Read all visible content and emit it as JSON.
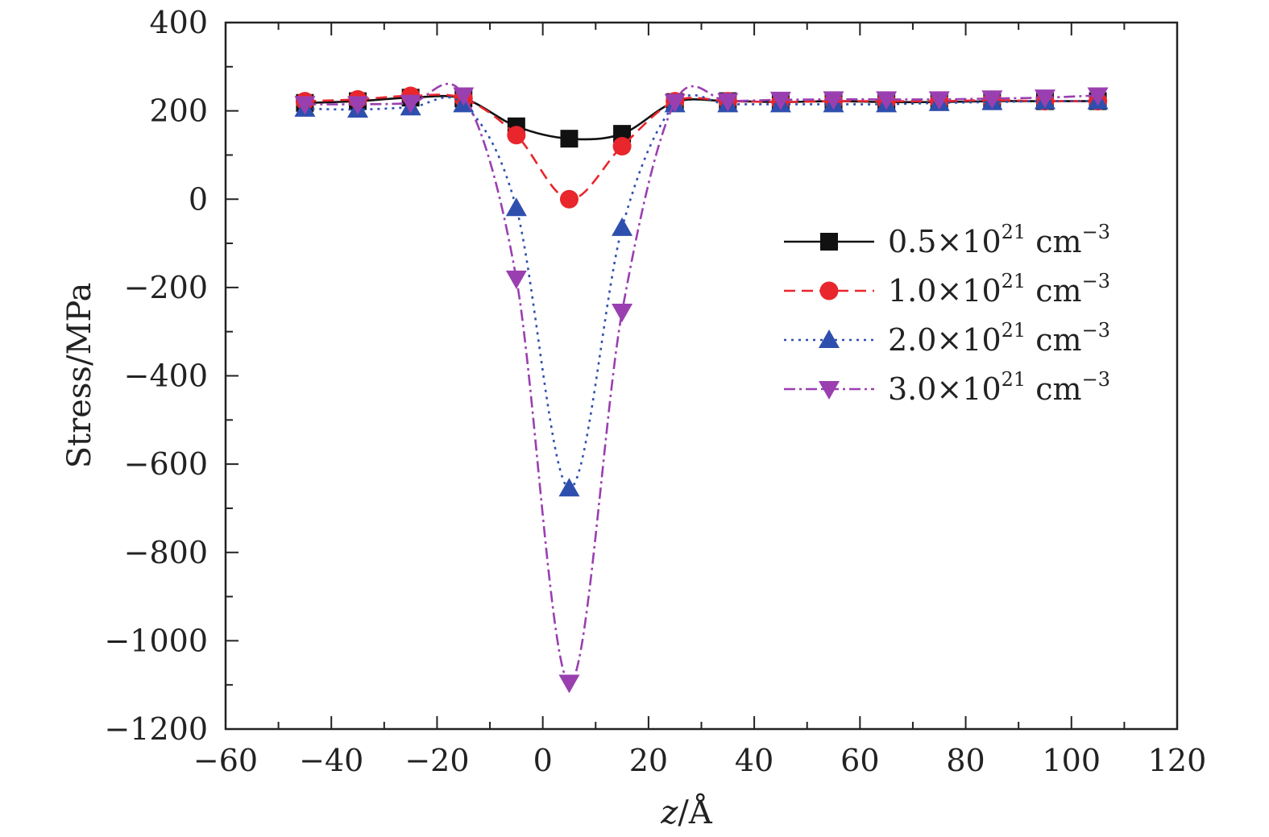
{
  "chart_data": {
    "type": "line",
    "title": "",
    "xlabel_var": "z",
    "xlabel_unit": "/Å",
    "ylabel": "Stress/MPa",
    "xlim": [
      -60,
      120
    ],
    "ylim": [
      -1200,
      400
    ],
    "xticks": [
      -60,
      -40,
      -20,
      0,
      20,
      40,
      60,
      80,
      100,
      120
    ],
    "xtick_labels": [
      "−60",
      "−40",
      "−20",
      "0",
      "20",
      "40",
      "60",
      "80",
      "100",
      "120"
    ],
    "yticks": [
      -1200,
      -1000,
      -800,
      -600,
      -400,
      -200,
      0,
      200,
      400
    ],
    "ytick_labels": [
      "−1200",
      "−1000",
      "−800",
      "−600",
      "−400",
      "−200",
      "0",
      "200",
      "400"
    ],
    "grid": false,
    "legend_position": "right",
    "x": [
      -45,
      -35,
      -25,
      -15,
      -5,
      5,
      15,
      25,
      35,
      45,
      55,
      65,
      75,
      85,
      95,
      105
    ],
    "series": [
      {
        "name_prefix": "0.5×10",
        "name_exp": "21",
        "name_unit": " cm",
        "name_unit_exp": "−3",
        "color": "#111111",
        "marker": "square",
        "dash": "",
        "values": [
          218,
          222,
          230,
          228,
          165,
          137,
          148,
          220,
          222,
          220,
          222,
          220,
          220,
          222,
          222,
          222
        ]
      },
      {
        "name_prefix": "1.0×10",
        "name_exp": "21",
        "name_unit": " cm",
        "name_unit_exp": "−3",
        "color": "#e8262c",
        "marker": "circle",
        "dash": "14,8",
        "values": [
          222,
          226,
          234,
          228,
          145,
          0,
          120,
          222,
          222,
          220,
          222,
          222,
          222,
          224,
          222,
          222
        ]
      },
      {
        "name_prefix": "2.0×10",
        "name_exp": "21",
        "name_unit": " cm",
        "name_unit_exp": "−3",
        "color": "#2e4fae",
        "marker": "triangle-up",
        "dash": "3,6",
        "values": [
          205,
          203,
          208,
          215,
          -20,
          -655,
          -65,
          215,
          215,
          215,
          215,
          215,
          218,
          220,
          222,
          222
        ]
      },
      {
        "name_prefix": "3.0×10",
        "name_exp": "21",
        "name_unit": " cm",
        "name_unit_exp": "−3",
        "color": "#9a3fb0",
        "marker": "triangle-down",
        "dash": "14,5,3,5",
        "values": [
          215,
          215,
          218,
          235,
          -180,
          -1095,
          -255,
          220,
          222,
          225,
          226,
          226,
          226,
          228,
          230,
          235
        ]
      }
    ]
  }
}
